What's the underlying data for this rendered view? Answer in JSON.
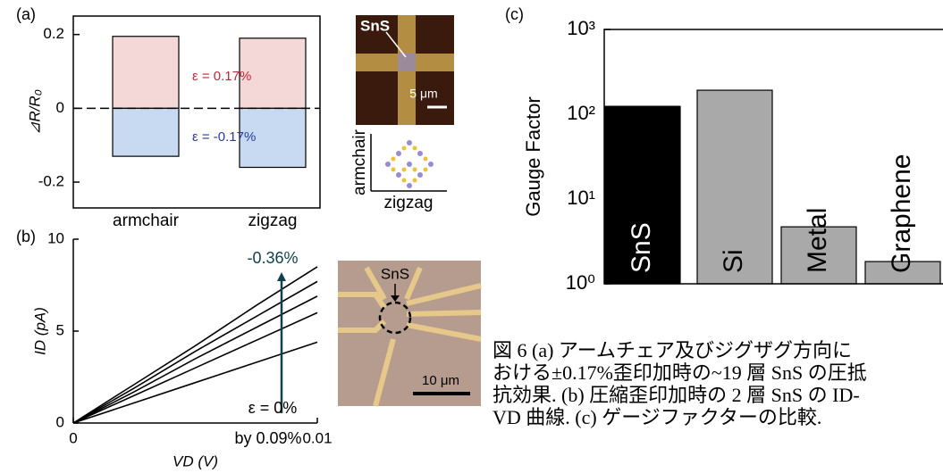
{
  "chart_data": [
    {
      "type": "bar",
      "panel": "(a)",
      "ylabel": "⊿R/R₀",
      "categories": [
        "armchair",
        "zigzag"
      ],
      "series": [
        {
          "color": "#f4d7d7",
          "values": [
            0.195,
            0.19
          ]
        },
        {
          "color": "#c7daf1",
          "values": [
            -0.13,
            -0.16
          ]
        }
      ],
      "annotations": [
        {
          "text": "ε = 0.17%",
          "color": "#c0283c"
        },
        {
          "text": "ε = -0.17%",
          "color": "#2b3a9a"
        }
      ],
      "ylim": [
        -0.27,
        0.25
      ],
      "yticks": [
        -0.2,
        0,
        0.2
      ],
      "zero_line": true
    },
    {
      "type": "line",
      "panel": "(b)",
      "xlabel": "VD (V)",
      "ylabel": "ID (pA)",
      "x": [
        0,
        0.0025,
        0.005,
        0.0075,
        0.01
      ],
      "series": [
        {
          "color": "#000000",
          "values": [
            0,
            2.1,
            4.2,
            6.4,
            8.5
          ]
        },
        {
          "color": "#000000",
          "values": [
            0,
            1.9,
            3.9,
            5.8,
            7.7
          ]
        },
        {
          "color": "#000000",
          "values": [
            0,
            1.7,
            3.5,
            5.2,
            6.9
          ]
        },
        {
          "color": "#000000",
          "values": [
            0,
            1.5,
            3.0,
            4.5,
            6.0
          ]
        },
        {
          "color": "#000000",
          "values": [
            0,
            1.1,
            2.2,
            3.3,
            4.4
          ]
        }
      ],
      "annotations": [
        {
          "text": "-0.36%",
          "color": "#12404f"
        },
        {
          "text": "ε = 0%",
          "color": "#000000"
        },
        {
          "text": "by 0.09%",
          "color": "#000000"
        }
      ],
      "xlim": [
        0,
        0.01
      ],
      "xticks": [
        0,
        0.01
      ],
      "ylim": [
        0,
        10
      ],
      "yticks": [
        0,
        5,
        10
      ]
    },
    {
      "type": "bar",
      "panel": "(c)",
      "ylabel": "Gauge Factor",
      "log_scale": true,
      "categories": [
        "SnS",
        "Si",
        "Metal",
        "Graphene"
      ],
      "values": [
        124,
        192,
        4.7,
        1.83
      ],
      "colors": [
        "#000000",
        "#a9a9a9",
        "#a9a9a9",
        "#a9a9a9"
      ],
      "ylim": [
        1,
        1000
      ],
      "yticks": [
        {
          "value": 1,
          "label": "10⁰"
        },
        {
          "value": 10,
          "label": "10¹"
        },
        {
          "value": 100,
          "label": "10²"
        },
        {
          "value": 1000,
          "label": "10³"
        }
      ]
    }
  ],
  "images": {
    "a_micrograph_label": "SnS",
    "a_scale_bar": "5 μm",
    "lattice_vertical": "armchair",
    "lattice_horizontal": "zigzag",
    "b_micrograph_label": "SnS",
    "b_scale_bar": "10 μm"
  },
  "caption": [
    "図 6 (a) アームチェア及びジグザグ方向に",
    "おける±0.17%歪印加時の~19 層 SnS の圧抵",
    "抗効果. (b) 圧縮歪印加時の 2 層 SnS の ID-",
    "VD 曲線. (c) ゲージファクターの比較."
  ]
}
